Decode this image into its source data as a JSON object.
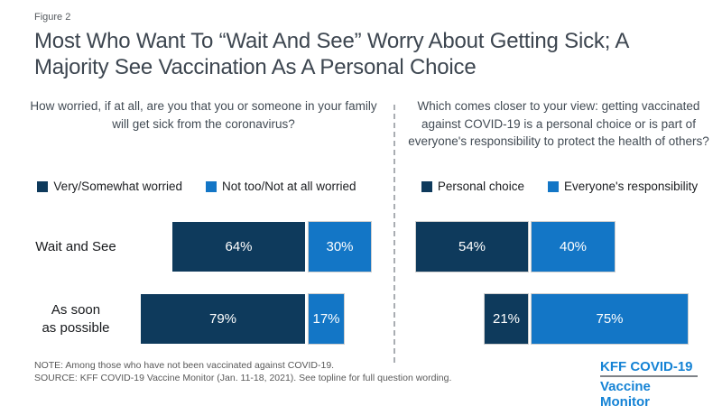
{
  "header": {
    "figure_label": "Figure 2",
    "title": "Most Who Want To “Wait And See” Worry About Getting Sick; A Majority See Vaccination As A Personal Choice"
  },
  "chart_data": [
    {
      "type": "bar",
      "panel": "left",
      "question": "How worried, if at all, are you that you or someone in your family will get sick from the coronavirus?",
      "categories": [
        "Wait and See",
        "As soon\nas possible"
      ],
      "series": [
        {
          "name": "Very/Somewhat worried",
          "color": "#0e3a5c",
          "values": [
            64,
            79
          ]
        },
        {
          "name": "Not too/Not at all worried",
          "color": "#1376c6",
          "values": [
            30,
            17
          ]
        }
      ],
      "value_suffix": "%",
      "layout_hint": "horizontal bars, dark series right-aligned to a shared axis, light series extends right, legend top"
    },
    {
      "type": "bar",
      "panel": "right",
      "question": "Which comes closer to your view: getting vaccinated against COVID-19 is a personal choice or is part of everyone's responsibility to protect the health of others?",
      "categories": [
        "Wait and See",
        "As soon\nas possible"
      ],
      "series": [
        {
          "name": "Personal choice",
          "color": "#0e3a5c",
          "values": [
            54,
            21
          ]
        },
        {
          "name": "Everyone's responsibility",
          "color": "#1376c6",
          "values": [
            40,
            75
          ]
        }
      ],
      "value_suffix": "%",
      "layout_hint": "horizontal bars, dark series right-aligned to a shared axis, light series extends right, legend top, row labels hidden (shared with left panel)"
    }
  ],
  "footer": {
    "note": "NOTE: Among those who have not been vaccinated against COVID-19.",
    "source": "SOURCE: KFF COVID-19 Vaccine Monitor (Jan. 11-18, 2021). See topline for full question wording.",
    "logo": {
      "line1": "KFF COVID-19",
      "line2": "Vaccine Monitor",
      "color": "#1583d5"
    }
  },
  "colors": {
    "dark_series": "#0e3a5c",
    "light_series": "#1376c6",
    "divider": "#a9adb2",
    "title_text": "#3d4650"
  }
}
